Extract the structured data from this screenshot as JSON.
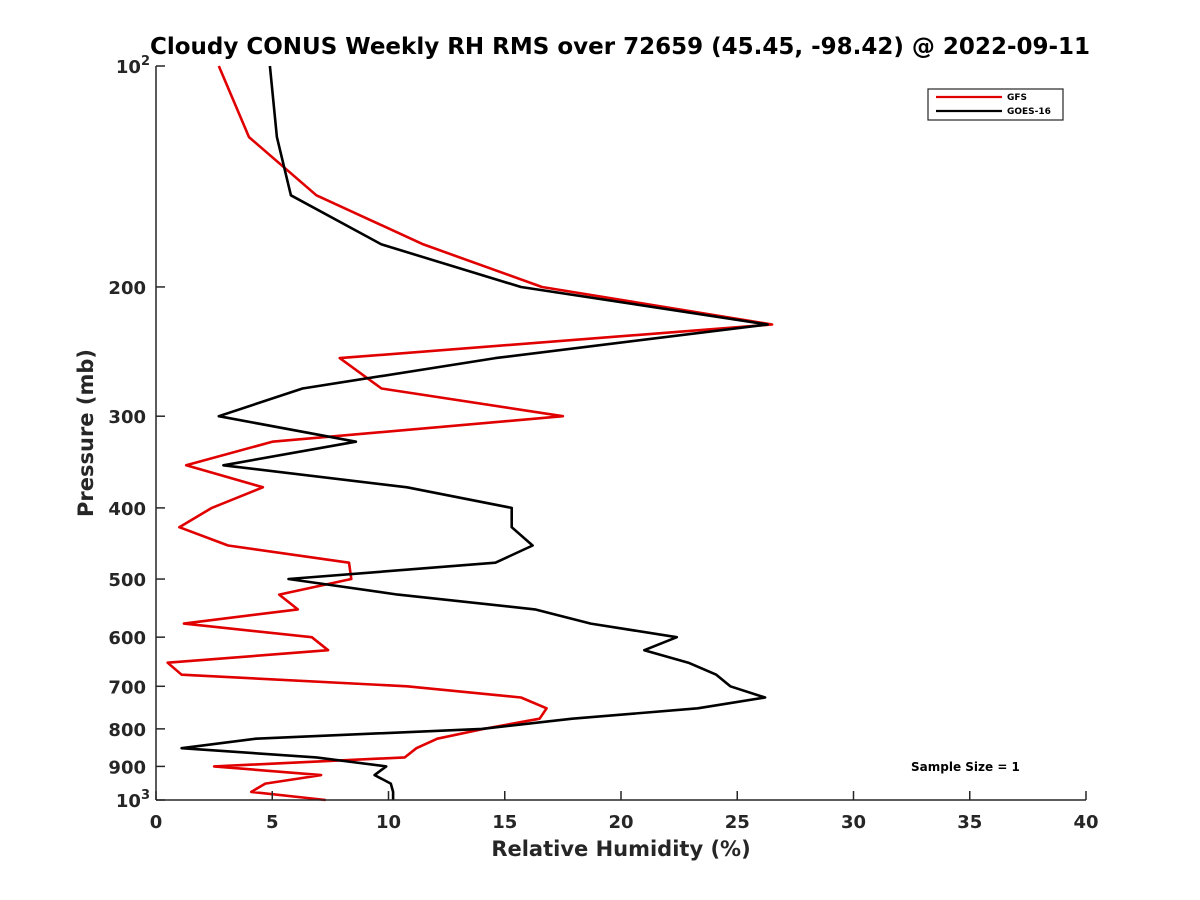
{
  "chart_data": {
    "type": "line",
    "title": "Cloudy CONUS Weekly RH RMS over 72659 (45.45, -98.42) @ 2022-09-11",
    "xlabel": "Relative Humidity (%)",
    "ylabel": "Pressure (mb)",
    "xlim": [
      0,
      40
    ],
    "ylim": [
      100,
      1000
    ],
    "y_scale": "log",
    "y_reversed": true,
    "grid": false,
    "legend_position": "top-right",
    "x_ticks": [
      "0",
      "5",
      "10",
      "15",
      "20",
      "25",
      "30",
      "35",
      "40"
    ],
    "x_tick_values": [
      0,
      5,
      10,
      15,
      20,
      25,
      30,
      35,
      40
    ],
    "y_ticks": [
      {
        "value": 100,
        "base": "10",
        "exp": "2"
      },
      {
        "value": 200,
        "text": "200"
      },
      {
        "value": 300,
        "text": "300"
      },
      {
        "value": 400,
        "text": "400"
      },
      {
        "value": 500,
        "text": "500"
      },
      {
        "value": 600,
        "text": "600"
      },
      {
        "value": 700,
        "text": "700"
      },
      {
        "value": 800,
        "text": "800"
      },
      {
        "value": 900,
        "text": "900"
      },
      {
        "value": 1000,
        "base": "10",
        "exp": "3"
      }
    ],
    "annotation": "Sample Size = 1",
    "series": [
      {
        "name": "GFS",
        "color": "#e00000",
        "points": [
          [
            2.7,
            100
          ],
          [
            4.0,
            125
          ],
          [
            6.9,
            150
          ],
          [
            11.5,
            175
          ],
          [
            16.6,
            200
          ],
          [
            26.5,
            225
          ],
          [
            7.9,
            250
          ],
          [
            9.7,
            275
          ],
          [
            17.5,
            300
          ],
          [
            5.0,
            325
          ],
          [
            1.3,
            350
          ],
          [
            4.6,
            375
          ],
          [
            2.4,
            400
          ],
          [
            1.0,
            425
          ],
          [
            3.1,
            450
          ],
          [
            8.3,
            475
          ],
          [
            8.4,
            500
          ],
          [
            5.3,
            525
          ],
          [
            6.1,
            550
          ],
          [
            1.2,
            575
          ],
          [
            6.7,
            600
          ],
          [
            7.4,
            625
          ],
          [
            0.5,
            650
          ],
          [
            1.1,
            675
          ],
          [
            10.8,
            700
          ],
          [
            15.7,
            725
          ],
          [
            16.8,
            750
          ],
          [
            16.5,
            775
          ],
          [
            14.1,
            800
          ],
          [
            12.1,
            825
          ],
          [
            11.2,
            850
          ],
          [
            10.7,
            875
          ],
          [
            2.5,
            900
          ],
          [
            7.1,
            925
          ],
          [
            4.7,
            950
          ],
          [
            4.1,
            975
          ],
          [
            7.3,
            1000
          ]
        ]
      },
      {
        "name": "GOES-16",
        "color": "#000000",
        "points": [
          [
            4.9,
            100
          ],
          [
            5.2,
            125
          ],
          [
            5.8,
            150
          ],
          [
            9.7,
            175
          ],
          [
            15.7,
            200
          ],
          [
            26.3,
            225
          ],
          [
            14.6,
            250
          ],
          [
            6.3,
            275
          ],
          [
            2.7,
            300
          ],
          [
            8.6,
            325
          ],
          [
            2.9,
            350
          ],
          [
            10.8,
            375
          ],
          [
            15.3,
            400
          ],
          [
            15.3,
            425
          ],
          [
            16.2,
            450
          ],
          [
            14.6,
            475
          ],
          [
            5.7,
            500
          ],
          [
            10.4,
            525
          ],
          [
            16.3,
            550
          ],
          [
            18.7,
            575
          ],
          [
            22.4,
            600
          ],
          [
            21.0,
            625
          ],
          [
            22.9,
            650
          ],
          [
            24.1,
            675
          ],
          [
            24.7,
            700
          ],
          [
            26.2,
            725
          ],
          [
            23.3,
            750
          ],
          [
            17.9,
            775
          ],
          [
            14.0,
            800
          ],
          [
            4.3,
            825
          ],
          [
            1.1,
            850
          ],
          [
            6.9,
            875
          ],
          [
            9.9,
            900
          ],
          [
            9.4,
            925
          ],
          [
            10.1,
            950
          ],
          [
            10.2,
            975
          ],
          [
            10.2,
            1000
          ]
        ]
      }
    ]
  }
}
